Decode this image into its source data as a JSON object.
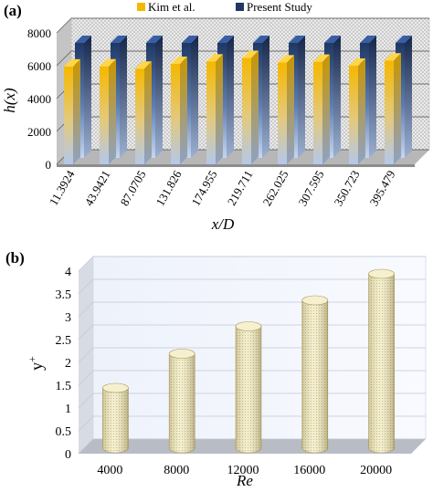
{
  "chart_data": [
    {
      "panel_label": "(a)",
      "type": "bar",
      "style": "3d-clustered",
      "categories": [
        "11.3924",
        "43.9421",
        "87.0705",
        "131.826",
        "174.955",
        "219.711",
        "262.025",
        "307.595",
        "350.723",
        "395.479"
      ],
      "series": [
        {
          "name": "Kim et al.",
          "values": [
            5950,
            5960,
            5820,
            6110,
            6260,
            6470,
            6200,
            6240,
            6000,
            6320
          ],
          "color": "#f5b800"
        },
        {
          "name": "Present Study",
          "values": [
            7000,
            7000,
            7000,
            7000,
            7000,
            7000,
            7000,
            7000,
            7000,
            7000
          ],
          "color": "#1f3864"
        }
      ],
      "xlabel": "x/D",
      "ylabel": "h(x)",
      "ylim": [
        0,
        8000
      ],
      "yticks": [
        "0",
        "2000",
        "4000",
        "6000",
        "8000"
      ],
      "grid": true,
      "legend_position": "top"
    },
    {
      "panel_label": "(b)",
      "type": "bar",
      "style": "3d-cylinder",
      "categories": [
        "4000",
        "8000",
        "12000",
        "16000",
        "20000"
      ],
      "values": [
        1.32,
        2.07,
        2.67,
        3.24,
        3.82
      ],
      "color": "#f3edc6",
      "xlabel": "Re",
      "ylabel": "y+",
      "ylim": [
        0,
        4
      ],
      "yticks": [
        "0",
        "0.5",
        "1",
        "1.5",
        "2",
        "2.5",
        "3",
        "3.5",
        "4"
      ],
      "grid": true
    }
  ]
}
